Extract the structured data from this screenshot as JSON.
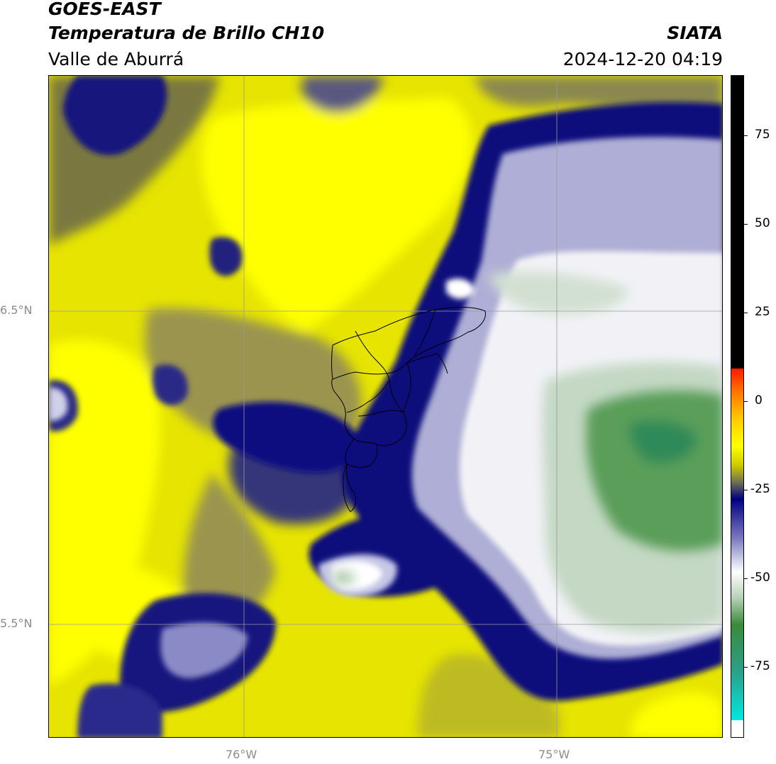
{
  "header": {
    "satellite": "GOES-EAST",
    "product": "Temperatura de Brillo CH10",
    "region": "Valle de Aburrá",
    "agency": "SIATA",
    "timestamp": "2024-12-20 04:19"
  },
  "map": {
    "lat_labels": [
      "6.5°N",
      "5.5°N"
    ],
    "lon_labels": [
      "76°W",
      "75°W"
    ],
    "projection_extent": {
      "lon_min": -76.63,
      "lon_max": -74.53,
      "lat_min": 5.13,
      "lat_max": 7.25
    },
    "cloud_colors": {
      "warm_bright": "#ffff00",
      "warm_mid": "#e8e800",
      "olive": "#8c8a3c",
      "navy": "#0a0a7a",
      "lavender": "#b8b8d8",
      "white": "#f4f4f4",
      "pale_green": "#c9dcc9",
      "green": "#3e8e3e"
    },
    "boundary_color": "#000000"
  },
  "colorbar": {
    "tick_labels": [
      "75",
      "50",
      "25",
      "0",
      "-25",
      "-50",
      "-75"
    ],
    "tick_values": [
      75,
      50,
      25,
      0,
      -25,
      -50,
      -75
    ],
    "range": [
      -95,
      92
    ],
    "colors": {
      "black": "#000000",
      "red": "#ff2200",
      "orange": "#ff9900",
      "yellow": "#ffff00",
      "navy": "#000080",
      "white": "#ffffff",
      "green": "#2e8b2e",
      "cyan": "#00e5e5"
    }
  }
}
